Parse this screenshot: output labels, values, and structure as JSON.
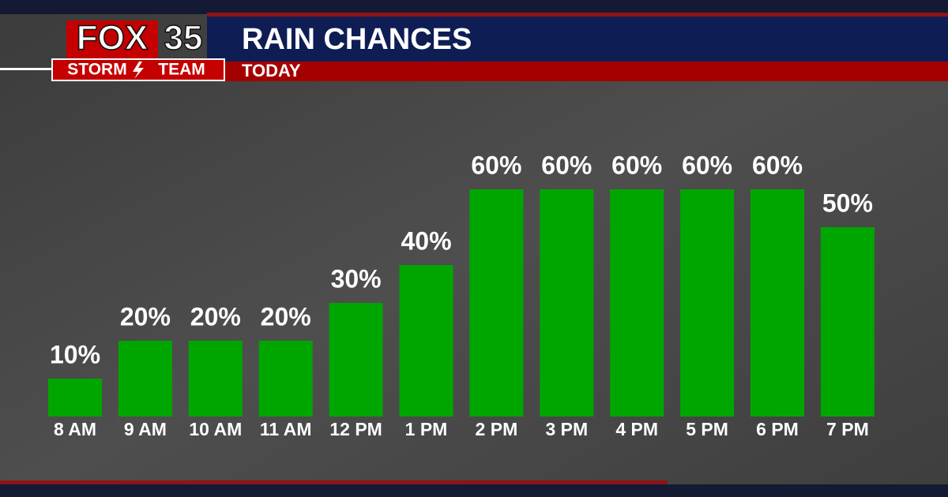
{
  "logo": {
    "brand": "FOX",
    "number": "35",
    "team_left": "STORM",
    "team_right": "TEAM"
  },
  "chart_data": {
    "type": "bar",
    "title": "RAIN CHANCES",
    "subtitle": "TODAY",
    "categories": [
      "8 AM",
      "9 AM",
      "10 AM",
      "11 AM",
      "12 PM",
      "1 PM",
      "2 PM",
      "3 PM",
      "4 PM",
      "5 PM",
      "6 PM",
      "7 PM"
    ],
    "values": [
      10,
      20,
      20,
      20,
      30,
      40,
      60,
      60,
      60,
      60,
      60,
      50
    ],
    "value_labels": [
      "10%",
      "20%",
      "20%",
      "20%",
      "30%",
      "40%",
      "60%",
      "60%",
      "60%",
      "60%",
      "60%",
      "50%"
    ],
    "color": "#00a600"
  }
}
